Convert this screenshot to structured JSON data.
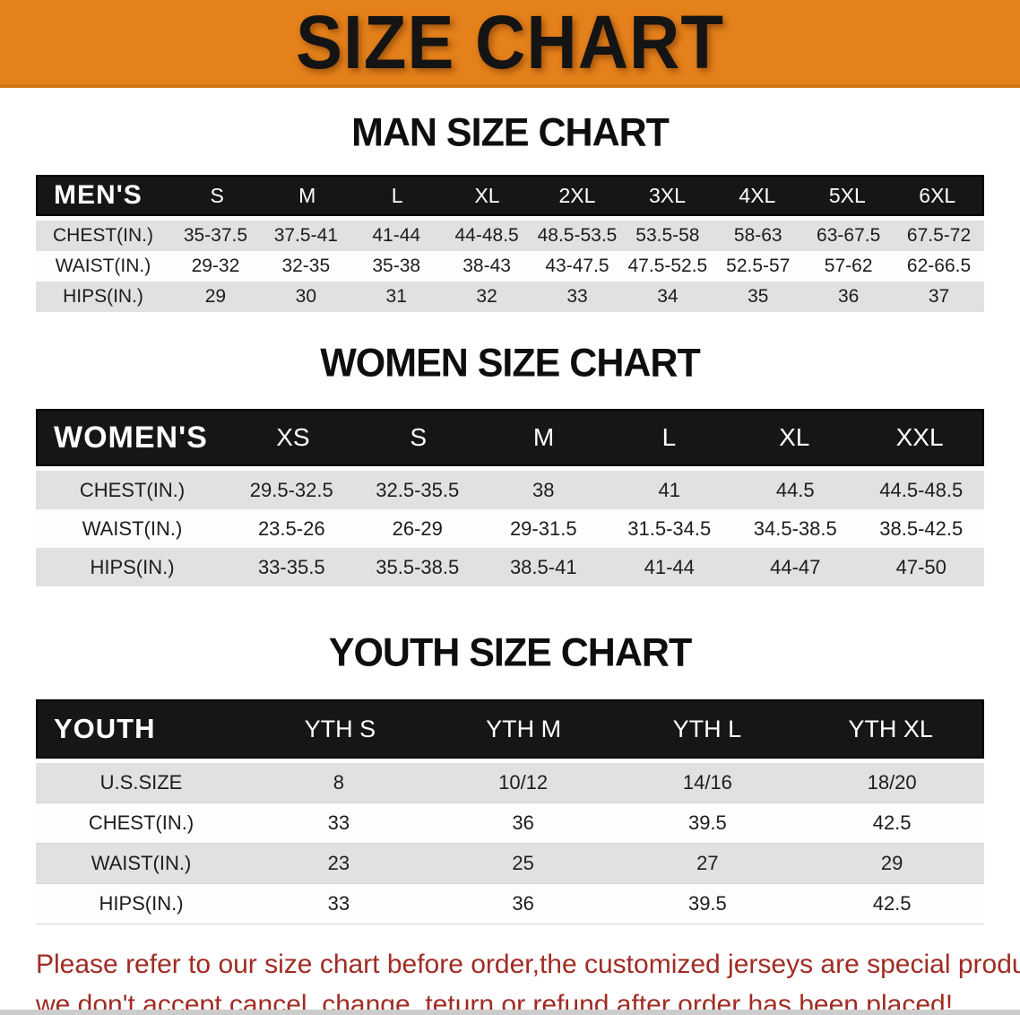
{
  "banner": {
    "title": "SIZE CHART",
    "bg_color": "#E5811A"
  },
  "men": {
    "heading": "MAN SIZE CHART",
    "label": "MEN'S",
    "sizes": [
      "S",
      "M",
      "L",
      "XL",
      "2XL",
      "3XL",
      "4XL",
      "5XL",
      "6XL"
    ],
    "rows": [
      {
        "label": "CHEST(IN.)",
        "values": [
          "35-37.5",
          "37.5-41",
          "41-44",
          "44-48.5",
          "48.5-53.5",
          "53.5-58",
          "58-63",
          "63-67.5",
          "67.5-72"
        ]
      },
      {
        "label": "WAIST(IN.)",
        "values": [
          "29-32",
          "32-35",
          "35-38",
          "38-43",
          "43-47.5",
          "47.5-52.5",
          "52.5-57",
          "57-62",
          "62-66.5"
        ]
      },
      {
        "label": "HIPS(IN.)",
        "values": [
          "29",
          "30",
          "31",
          "32",
          "33",
          "34",
          "35",
          "36",
          "37"
        ]
      }
    ]
  },
  "women": {
    "heading": "WOMEN SIZE CHART",
    "label": "WOMEN'S",
    "sizes": [
      "XS",
      "S",
      "M",
      "L",
      "XL",
      "XXL"
    ],
    "rows": [
      {
        "label": "CHEST(IN.)",
        "values": [
          "29.5-32.5",
          "32.5-35.5",
          "38",
          "41",
          "44.5",
          "44.5-48.5"
        ]
      },
      {
        "label": "WAIST(IN.)",
        "values": [
          "23.5-26",
          "26-29",
          "29-31.5",
          "31.5-34.5",
          "34.5-38.5",
          "38.5-42.5"
        ]
      },
      {
        "label": "HIPS(IN.)",
        "values": [
          "33-35.5",
          "35.5-38.5",
          "38.5-41",
          "41-44",
          "44-47",
          "47-50"
        ]
      }
    ]
  },
  "youth": {
    "heading": "YOUTH SIZE CHART",
    "label": "YOUTH",
    "sizes": [
      "YTH S",
      "YTH M",
      "YTH L",
      "YTH XL"
    ],
    "rows": [
      {
        "label": "U.S.SIZE",
        "values": [
          "8",
          "10/12",
          "14/16",
          "18/20"
        ]
      },
      {
        "label": "CHEST(IN.)",
        "values": [
          "33",
          "36",
          "39.5",
          "42.5"
        ]
      },
      {
        "label": "WAIST(IN.)",
        "values": [
          "23",
          "25",
          "27",
          "29"
        ]
      },
      {
        "label": "HIPS(IN.)",
        "values": [
          "33",
          "36",
          "39.5",
          "42.5"
        ]
      }
    ]
  },
  "note": {
    "line1": "Please refer to our size chart before order,the customized jerseys are special products,",
    "line2": "we don't accept cancel, change, teturn or refund after order has been placed!",
    "color": "#A02C24"
  }
}
